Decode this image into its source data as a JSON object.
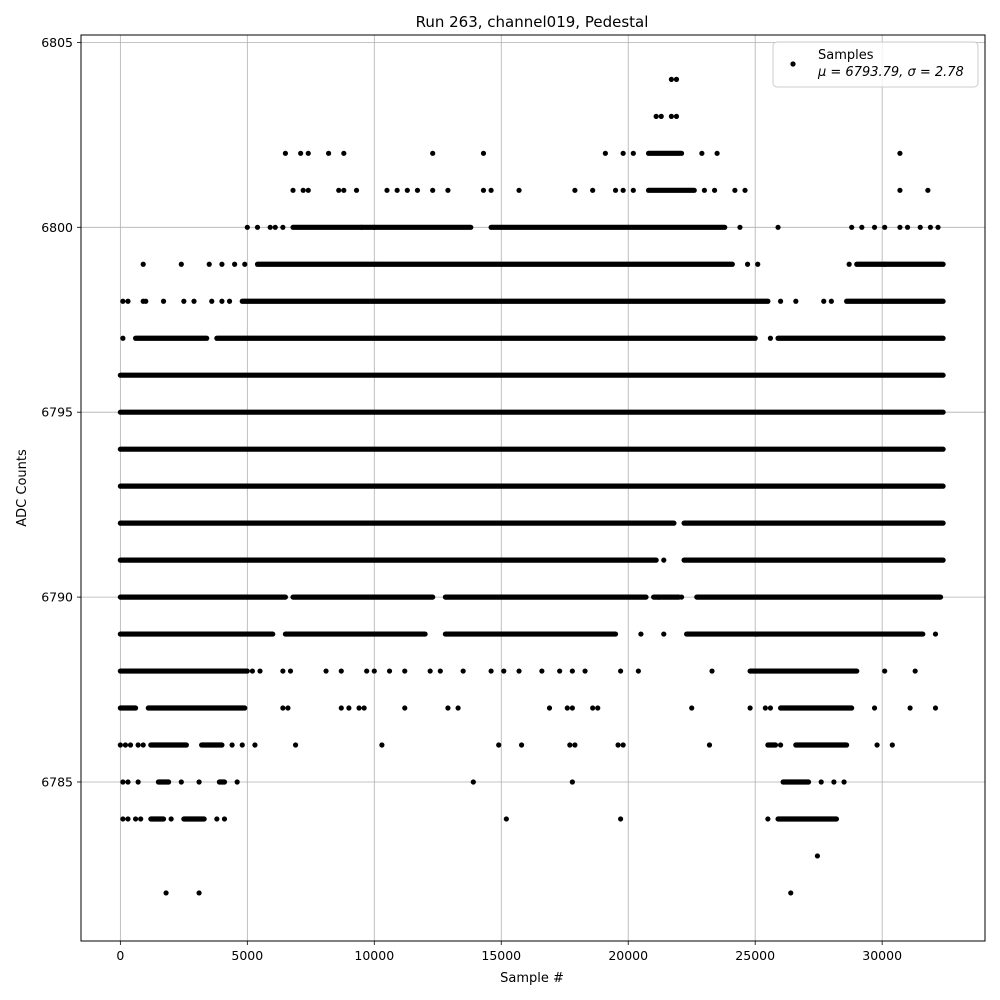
{
  "chart_data": {
    "type": "scatter",
    "title": "Run 263, channel019, Pedestal",
    "xlabel": "Sample #",
    "ylabel": "ADC Counts",
    "xlim": [
      -1550,
      34050
    ],
    "ylim": [
      6780.7,
      6805.2
    ],
    "xticks": [
      0,
      5000,
      10000,
      15000,
      20000,
      25000,
      30000
    ],
    "yticks": [
      6785,
      6790,
      6795,
      6800,
      6805
    ],
    "grid": true,
    "legend": {
      "location": "upper right",
      "entries": [
        {
          "label": "Samples",
          "stats": "μ = 6793.79, σ = 2.78",
          "marker": "circle",
          "color": "#000000"
        }
      ]
    },
    "marker_color": "#000000",
    "series": [
      {
        "name": "Samples",
        "levels": [
          {
            "y": 6782,
            "segments": [],
            "points": [
              1800,
              3100,
              26400
            ]
          },
          {
            "y": 6783,
            "segments": [],
            "points": [
              27450
            ]
          },
          {
            "y": 6784,
            "segments": [
              [
                1200,
                1700
              ],
              [
                2500,
                3300
              ],
              [
                25900,
                28200
              ]
            ],
            "points": [
              100,
              300,
              600,
              800,
              2000,
              3800,
              4100,
              15200,
              19700,
              25500
            ]
          },
          {
            "y": 6785,
            "segments": [
              [
                1500,
                1900
              ],
              [
                3900,
                4100
              ],
              [
                26100,
                27100
              ]
            ],
            "points": [
              100,
              300,
              700,
              2400,
              3100,
              4600,
              13900,
              17800,
              27600,
              28100,
              28500
            ]
          },
          {
            "y": 6786,
            "segments": [
              [
                1200,
                2600
              ],
              [
                3200,
                4000
              ],
              [
                25500,
                25800
              ],
              [
                26600,
                28600
              ]
            ],
            "points": [
              0,
              200,
              400,
              700,
              900,
              4400,
              4800,
              5300,
              6900,
              10300,
              14900,
              15800,
              17700,
              17900,
              19600,
              19800,
              23200,
              26000,
              29800,
              30400
            ]
          },
          {
            "y": 6787,
            "segments": [
              [
                0,
                600
              ],
              [
                1100,
                4900
              ],
              [
                26000,
                28800
              ]
            ],
            "points": [
              6400,
              6600,
              8700,
              9000,
              9400,
              9600,
              11200,
              12900,
              13300,
              16900,
              17600,
              17800,
              18600,
              18800,
              22500,
              24800,
              25400,
              25600,
              29700,
              31100,
              32100
            ]
          },
          {
            "y": 6788,
            "segments": [
              [
                0,
                5000
              ],
              [
                24800,
                29000
              ]
            ],
            "points": [
              5200,
              5500,
              6400,
              6700,
              8100,
              8700,
              9700,
              10000,
              10600,
              11200,
              12200,
              12600,
              13500,
              14600,
              15100,
              15700,
              16600,
              17300,
              17800,
              18300,
              19700,
              20400,
              23300,
              30100,
              31300
            ]
          },
          {
            "y": 6789,
            "segments": [
              [
                0,
                6000
              ],
              [
                6500,
                12000
              ],
              [
                12800,
                19500
              ],
              [
                22300,
                25100
              ],
              [
                25000,
                31600
              ]
            ],
            "points": [
              20500,
              21400,
              32100
            ]
          },
          {
            "y": 6790,
            "segments": [
              [
                0,
                6500
              ],
              [
                6800,
                12300
              ],
              [
                12800,
                20700
              ],
              [
                21000,
                22000
              ],
              [
                22700,
                32300
              ]
            ],
            "points": [
              21200,
              22100
            ]
          },
          {
            "y": 6791,
            "segments": [
              [
                0,
                21100
              ],
              [
                22200,
                32400
              ]
            ],
            "points": [
              21400
            ]
          },
          {
            "y": 6792,
            "segments": [
              [
                0,
                21800
              ],
              [
                22200,
                32400
              ]
            ],
            "points": []
          },
          {
            "y": 6793,
            "segments": [
              [
                0,
                32400
              ]
            ],
            "points": []
          },
          {
            "y": 6794,
            "segments": [
              [
                0,
                32400
              ]
            ],
            "points": []
          },
          {
            "y": 6795,
            "segments": [
              [
                0,
                32400
              ]
            ],
            "points": []
          },
          {
            "y": 6796,
            "segments": [
              [
                0,
                32400
              ]
            ],
            "points": []
          },
          {
            "y": 6797,
            "segments": [
              [
                600,
                3400
              ],
              [
                3800,
                25000
              ],
              [
                25900,
                32400
              ]
            ],
            "points": [
              100,
              25600
            ]
          },
          {
            "y": 6798,
            "segments": [
              [
                4800,
                25500
              ],
              [
                28600,
                32400
              ]
            ],
            "points": [
              100,
              300,
              900,
              1000,
              1700,
              2500,
              2900,
              3600,
              4000,
              4300,
              26000,
              26600,
              27700,
              28000
            ]
          },
          {
            "y": 6799,
            "segments": [
              [
                5400,
                24100
              ],
              [
                29000,
                32400
              ]
            ],
            "points": [
              900,
              2400,
              3500,
              4000,
              4500,
              4900,
              24700,
              25100,
              28700,
              30100
            ]
          },
          {
            "y": 6800,
            "segments": [
              [
                6800,
                13800
              ],
              [
                14600,
                23800
              ]
            ],
            "points": [
              5000,
              5400,
              5900,
              6100,
              6400,
              9500,
              10000,
              24400,
              25900,
              28800,
              29200,
              29700,
              30100,
              30700,
              31000,
              31500,
              31900,
              32200
            ]
          },
          {
            "y": 6801,
            "segments": [
              [
                20800,
                22600
              ]
            ],
            "points": [
              6800,
              7200,
              7400,
              8600,
              8800,
              9300,
              10500,
              10900,
              11300,
              11700,
              12300,
              12900,
              14300,
              14600,
              15700,
              17900,
              18600,
              19500,
              19800,
              20200,
              23000,
              23400,
              24200,
              24600,
              30700,
              31800
            ]
          },
          {
            "y": 6802,
            "segments": [
              [
                20800,
                22100
              ]
            ],
            "points": [
              6500,
              7100,
              7400,
              8200,
              8800,
              12300,
              14300,
              19100,
              19800,
              20200,
              22900,
              23500,
              30700
            ]
          },
          {
            "y": 6803,
            "segments": [],
            "points": [
              21100,
              21300,
              21700,
              21900
            ]
          },
          {
            "y": 6804,
            "segments": [],
            "points": [
              21700,
              21900
            ]
          }
        ]
      }
    ]
  }
}
